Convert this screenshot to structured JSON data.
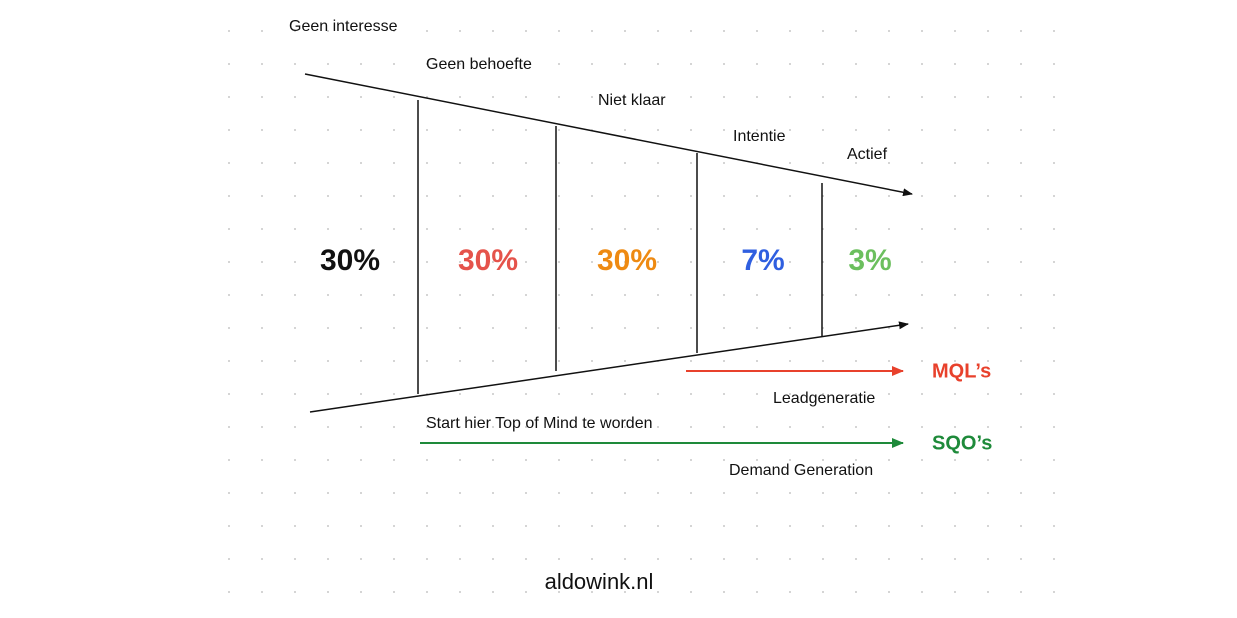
{
  "stages": [
    {
      "label": "Geen interesse",
      "share": "30%"
    },
    {
      "label": "Geen behoefte",
      "share": "30%"
    },
    {
      "label": "Niet klaar",
      "share": "30%"
    },
    {
      "label": "Intentie",
      "share": "7%"
    },
    {
      "label": "Actief",
      "share": "3%"
    }
  ],
  "leadgen": {
    "target": "MQL’s",
    "label": "Leadgeneratie"
  },
  "demandgen": {
    "start": "Start hier Top of Mind te worden",
    "target": "SQO’s",
    "label": "Demand Generation"
  },
  "footer": "aldowink.nl"
}
